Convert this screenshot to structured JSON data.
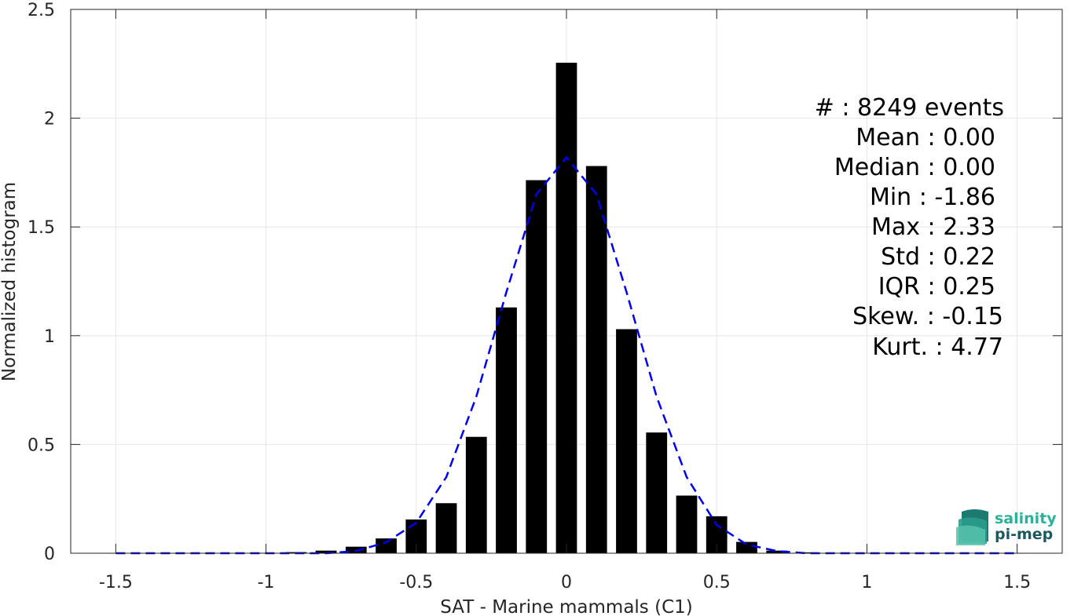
{
  "chart_data": {
    "type": "bar",
    "xlabel": "SAT - Marine mammals (C1)",
    "ylabel": "Normalized histogram",
    "xlim": [
      -1.65,
      1.65
    ],
    "ylim": [
      0,
      2.5
    ],
    "grid": true,
    "xticks": [
      -1.5,
      -1,
      -0.5,
      0,
      0.5,
      1,
      1.5
    ],
    "xtick_labels": [
      "-1.5",
      "-1",
      "-0.5",
      "0",
      "0.5",
      "1",
      "1.5"
    ],
    "yticks": [
      0,
      0.5,
      1,
      1.5,
      2,
      2.5
    ],
    "ytick_labels": [
      "0",
      "0.5",
      "1",
      "1.5",
      "2",
      "2.5"
    ],
    "bar_width": 0.07,
    "bins": [
      -1.5,
      -1.4,
      -1.3,
      -1.2,
      -1.1,
      -1.0,
      -0.9,
      -0.8,
      -0.7,
      -0.6,
      -0.5,
      -0.4,
      -0.3,
      -0.2,
      -0.1,
      0.0,
      0.1,
      0.2,
      0.3,
      0.4,
      0.5,
      0.6,
      0.7,
      0.8,
      0.9,
      1.0,
      1.1,
      1.2,
      1.3,
      1.4,
      1.5
    ],
    "values": [
      0.001,
      0.001,
      0.001,
      0.001,
      0.001,
      0.002,
      0.005,
      0.012,
      0.03,
      0.068,
      0.155,
      0.23,
      0.535,
      1.13,
      1.715,
      2.255,
      1.78,
      1.03,
      0.555,
      0.265,
      0.17,
      0.052,
      0.012,
      0.004,
      0.002,
      0.001,
      0.001,
      0.001,
      0.001,
      0.001,
      0.001
    ],
    "bar_color": "#000000",
    "fit_line": {
      "style": "dashed",
      "color": "#0000ee",
      "x": [
        -1.5,
        -1.4,
        -1.3,
        -1.2,
        -1.1,
        -1.0,
        -0.9,
        -0.8,
        -0.7,
        -0.6,
        -0.5,
        -0.4,
        -0.3,
        -0.2,
        -0.1,
        0.0,
        0.1,
        0.2,
        0.3,
        0.4,
        0.5,
        0.6,
        0.7,
        0.8,
        0.9,
        1.0,
        1.1,
        1.2,
        1.3,
        1.4,
        1.5
      ],
      "y": [
        0,
        0,
        0,
        0,
        0,
        0,
        0,
        0,
        0.01,
        0.05,
        0.14,
        0.35,
        0.72,
        1.2,
        1.65,
        1.82,
        1.65,
        1.2,
        0.72,
        0.35,
        0.13,
        0.04,
        0.01,
        0,
        0,
        0,
        0,
        0,
        0,
        0,
        0
      ]
    }
  },
  "stats": [
    {
      "label": "#  : 8249 events"
    },
    {
      "label": "Mean : 0.00"
    },
    {
      "label": "Median : 0.00"
    },
    {
      "label": "Min : -1.86"
    },
    {
      "label": "Max : 2.33"
    },
    {
      "label": "Std : 0.22"
    },
    {
      "label": "IQR : 0.25"
    },
    {
      "label": "Skew. : -0.15"
    },
    {
      "label": "Kurt. : 4.77"
    }
  ],
  "logo": {
    "line1": "salinity",
    "line2": "pi-mep",
    "color_line1": "#2bb39a",
    "color_line2": "#1d5a60"
  }
}
